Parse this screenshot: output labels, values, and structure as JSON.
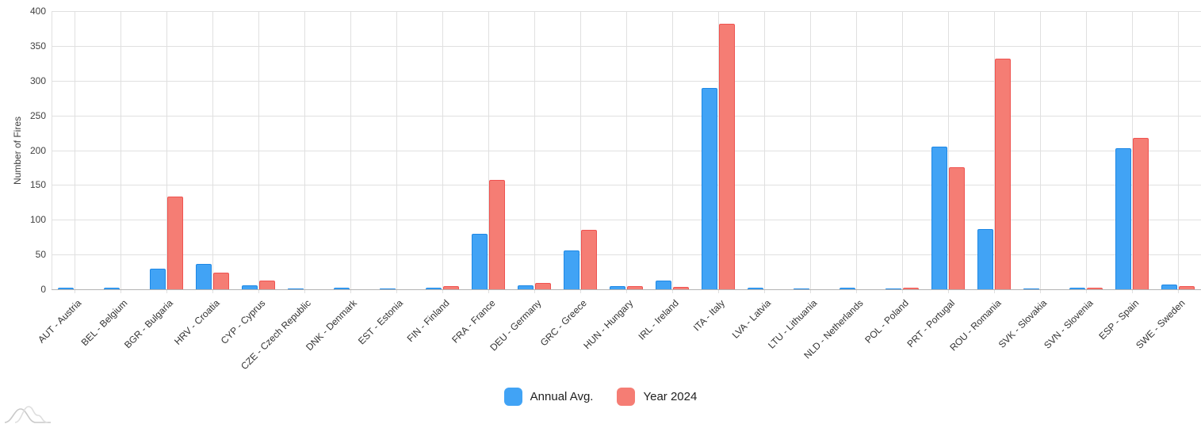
{
  "chart_data": {
    "type": "bar",
    "title": "",
    "xlabel": "",
    "ylabel": "Number of Fires",
    "ylim": [
      0,
      400
    ],
    "yticks": [
      0,
      50,
      100,
      150,
      200,
      250,
      300,
      350,
      400
    ],
    "grid": true,
    "legend_position": "bottom",
    "categories": [
      "AUT - Austria",
      "BEL - Belgium",
      "BGR - Bulgaria",
      "HRV - Croatia",
      "CYP - Cyprus",
      "CZE - Czech Republic",
      "DNK - Denmark",
      "EST - Estonia",
      "FIN - Finland",
      "FRA - France",
      "DEU - Germany",
      "GRC - Greece",
      "HUN - Hungary",
      "IRL - Ireland",
      "ITA - Italy",
      "LVA - Latvia",
      "LTU - Lithuania",
      "NLD - Netherlands",
      "POL - Poland",
      "PRT - Portugal",
      "ROU - Romania",
      "SVK - Slovakia",
      "SVN - Slovenia",
      "ESP - Spain",
      "SWE - Sweden"
    ],
    "series": [
      {
        "name": "Annual Avg.",
        "fill": "#41a3f5",
        "border": "#1e88e5",
        "values": [
          2,
          2,
          30,
          37,
          6,
          1,
          2,
          1,
          2,
          80,
          6,
          56,
          4,
          12,
          290,
          2,
          1,
          2,
          1,
          205,
          87,
          1,
          2,
          203,
          7
        ]
      },
      {
        "name": "Year 2024",
        "fill": "#f57d74",
        "border": "#ef5350",
        "values": [
          0,
          0,
          133,
          24,
          13,
          0,
          0,
          0,
          4,
          157,
          9,
          85,
          4,
          3,
          382,
          0,
          0,
          0,
          2,
          175,
          332,
          0,
          2,
          218,
          4
        ]
      }
    ]
  },
  "colors": {
    "gridline": "#e0e0e0",
    "baseline": "#b3b3b3",
    "ytick_label": "#424242",
    "xtick_label": "#333333",
    "legend_text": "#212121",
    "watermark": "#cccccc"
  },
  "watermark_icon": "overlapping-area-curves"
}
